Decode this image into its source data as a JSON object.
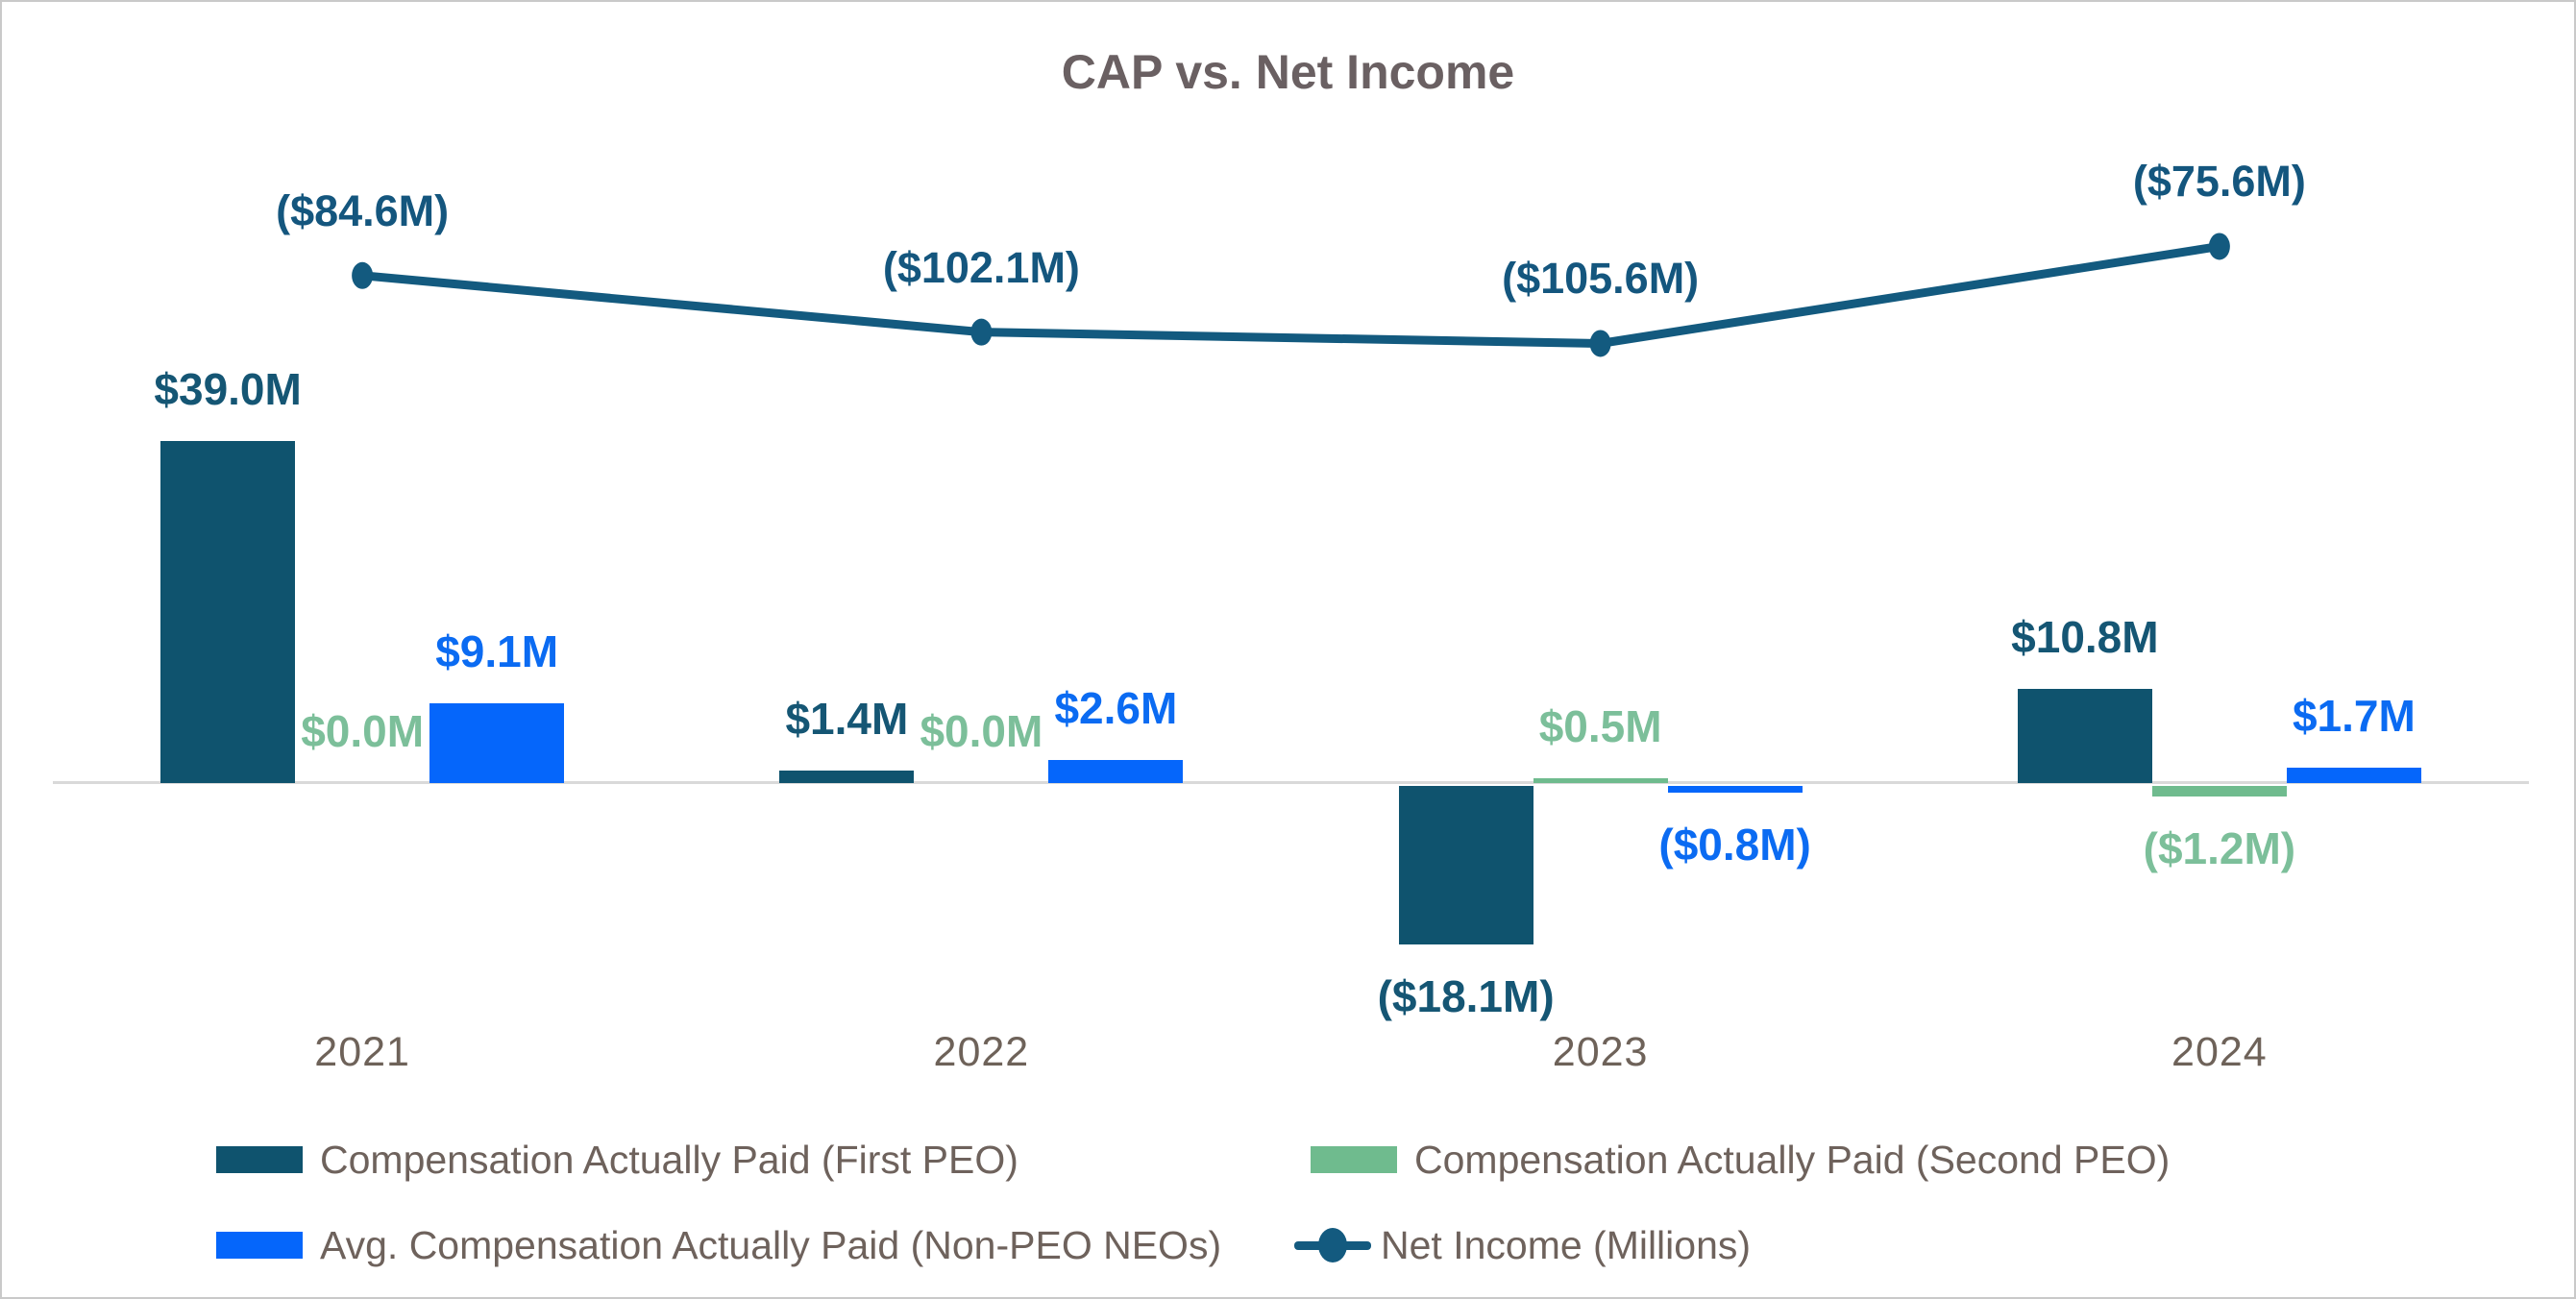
{
  "chart_data": {
    "type": "bar",
    "subtype": "combo-bar-line",
    "title": "CAP vs. Net Income",
    "categories": [
      "2021",
      "2022",
      "2023",
      "2024"
    ],
    "series": [
      {
        "name": "Compensation Actually Paid (First PEO)",
        "kind": "bar",
        "color_key": "first_peo",
        "label_color_key": "first_peo_label",
        "values": [
          39.0,
          1.4,
          -18.1,
          10.8
        ],
        "data_labels": [
          "$39.0M",
          "$1.4M",
          "($18.1M)",
          "$10.8M"
        ]
      },
      {
        "name": "Compensation Actually Paid (Second PEO)",
        "kind": "bar",
        "color_key": "second_peo",
        "label_color_key": "second_peo_label",
        "values": [
          0.0,
          0.0,
          0.5,
          -1.2
        ],
        "data_labels": [
          "$0.0M",
          "$0.0M",
          "$0.5M",
          "($1.2M)"
        ]
      },
      {
        "name": "Avg. Compensation Actually Paid (Non-PEO NEOs)",
        "kind": "bar",
        "color_key": "non_peo_neos",
        "label_color_key": "non_peo_neos_label",
        "values": [
          9.1,
          2.6,
          -0.8,
          1.7
        ],
        "data_labels": [
          "$9.1M",
          "$2.6M",
          "($0.8M)",
          "$1.7M"
        ]
      },
      {
        "name": "Net Income (Millions)",
        "kind": "line",
        "color_key": "net_income_line",
        "label_color_key": "net_income_label",
        "values": [
          -84.6,
          -102.1,
          -105.6,
          -75.6
        ],
        "data_labels": [
          "($84.6M)",
          "($102.1M)",
          "($105.6M)",
          "($75.6M)"
        ]
      }
    ],
    "xlabel": "",
    "ylabel": "",
    "units": "millions of dollars",
    "bar_axis_range_hint": [
      -20,
      40
    ],
    "line_axis_range_hint": [
      -241.5,
      0
    ],
    "grid": false,
    "legend_position": "bottom"
  },
  "colors": {
    "first_peo": "#0F536E",
    "first_peo_label": "#155674",
    "second_peo": "#6FBB8E",
    "second_peo_label": "#7CBF9A",
    "non_peo_neos": "#0566FB",
    "non_peo_neos_label": "#0B6BF2",
    "net_income_line": "#135A7F",
    "net_income_label": "#14567E",
    "axis_text": "#6E6259",
    "legend_text": "#6E625C",
    "title_text": "#6A6062",
    "baseline": "#D9D9D9"
  },
  "legend": {
    "rows": [
      [
        {
          "swatch": "bar",
          "series_index": 0,
          "label": "Compensation Actually Paid (First PEO)"
        },
        {
          "swatch": "bar",
          "series_index": 1,
          "label": "Compensation Actually Paid (Second PEO)"
        }
      ],
      [
        {
          "swatch": "bar",
          "series_index": 2,
          "label": "Avg. Compensation Actually Paid (Non-PEO NEOs)"
        },
        {
          "swatch": "line",
          "series_index": 3,
          "label": "Net Income (Millions)"
        }
      ]
    ]
  }
}
